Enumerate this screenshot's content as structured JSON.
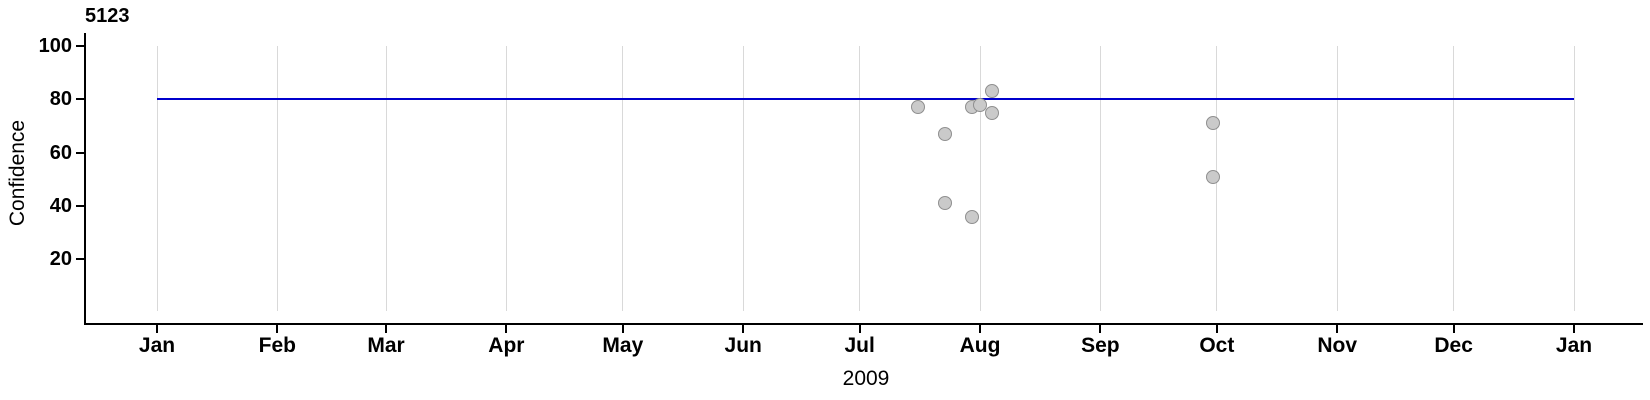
{
  "chart_data": {
    "type": "scatter",
    "title": "5123",
    "xlabel": "2009",
    "ylabel": "Confidence",
    "x_axis": {
      "start_date": "2009-01-01",
      "end_date": "2010-01-01",
      "tick_labels": [
        "Jan",
        "Feb",
        "Mar",
        "Apr",
        "May",
        "Jun",
        "Jul",
        "Aug",
        "Sep",
        "Oct",
        "Nov",
        "Dec",
        "Jan"
      ],
      "tick_day_offsets": [
        0,
        31,
        59,
        90,
        120,
        151,
        181,
        212,
        243,
        273,
        304,
        334,
        365
      ],
      "grid": true
    },
    "y_axis": {
      "ticks": [
        20,
        40,
        60,
        80,
        100
      ],
      "tick_labels": [
        "20",
        "40",
        "60",
        "80",
        "100"
      ],
      "range": [
        0,
        105
      ]
    },
    "reference_line": {
      "y": 80,
      "color": "#0000cc"
    },
    "points": [
      {
        "date": "2009-07-16",
        "confidence": 77
      },
      {
        "date": "2009-07-23",
        "confidence": 67
      },
      {
        "date": "2009-07-23",
        "confidence": 41
      },
      {
        "date": "2009-07-30",
        "confidence": 77
      },
      {
        "date": "2009-07-30",
        "confidence": 36
      },
      {
        "date": "2009-08-01",
        "confidence": 78
      },
      {
        "date": "2009-08-04",
        "confidence": 83
      },
      {
        "date": "2009-08-04",
        "confidence": 75
      },
      {
        "date": "2009-09-30",
        "confidence": 71
      },
      {
        "date": "2009-09-30",
        "confidence": 51
      }
    ],
    "point_fill_color": "#cacaca",
    "point_border_color": "#8f8f8f",
    "grid_color": "#d9d9d9",
    "axis_color": "#000000"
  }
}
